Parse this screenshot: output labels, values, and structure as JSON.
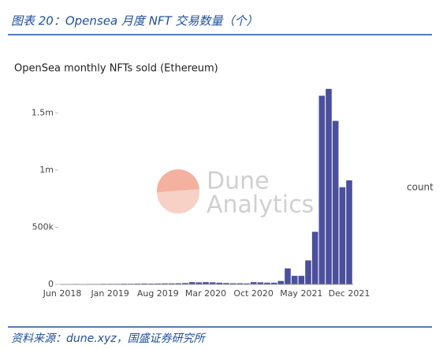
{
  "header": {
    "title": "图表 20：Opensea 月度 NFT 交易数量（个）"
  },
  "chart_data": {
    "type": "bar",
    "title": "OpenSea monthly NFTs sold (Ethereum)",
    "legend": "count",
    "watermark": [
      "Dune",
      "Analytics"
    ],
    "color": "#4b4f9c",
    "categories": [
      "Jun 2018",
      null,
      null,
      null,
      null,
      null,
      null,
      "Jan 2019",
      null,
      null,
      null,
      null,
      null,
      null,
      "Aug 2019",
      null,
      null,
      null,
      null,
      null,
      null,
      "Mar 2020",
      null,
      null,
      null,
      null,
      null,
      null,
      "Oct 2020",
      null,
      null,
      null,
      null,
      null,
      null,
      "May 2021",
      null,
      null,
      null,
      null,
      null,
      null,
      "Dec 2021"
    ],
    "values": [
      3000,
      3000,
      4000,
      3000,
      4000,
      4000,
      5000,
      5000,
      5000,
      6000,
      6000,
      7000,
      8000,
      7000,
      8000,
      9000,
      9000,
      10000,
      12000,
      20000,
      18000,
      20000,
      18000,
      15000,
      12000,
      10000,
      10000,
      9000,
      20000,
      18000,
      15000,
      15000,
      30000,
      140000,
      75000,
      75000,
      210000,
      460000,
      1650000,
      1710000,
      1430000,
      850000,
      910000
    ],
    "ylim": [
      0,
      1750000
    ],
    "yticks": [
      0,
      {
        "value": 500000,
        "label": "500k"
      },
      {
        "value": 1000000,
        "label": "1m"
      },
      {
        "value": 1500000,
        "label": "1.5m"
      }
    ]
  },
  "footer": {
    "source": "资料来源：dune.xyz，国盛证券研究所"
  }
}
